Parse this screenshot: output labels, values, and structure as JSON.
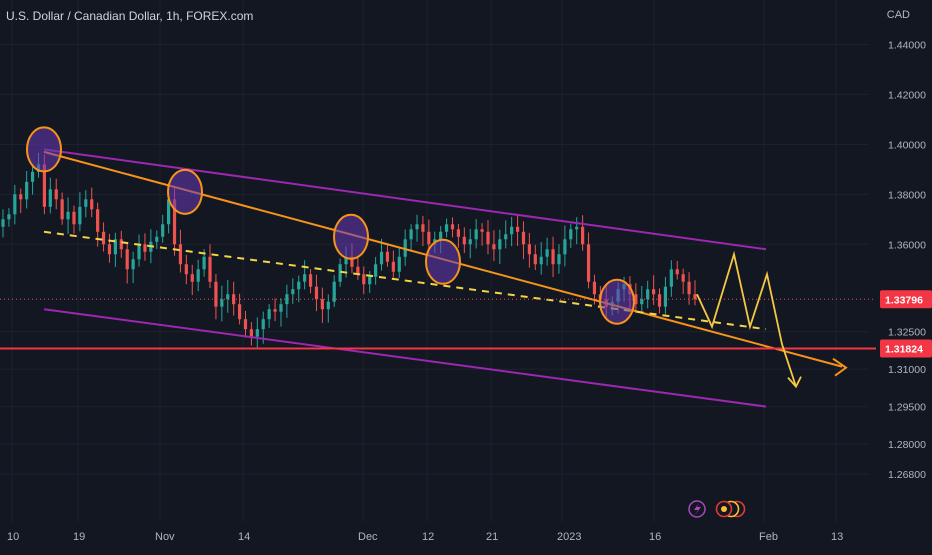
{
  "header": {
    "title": "U.S. Dollar / Canadian Dollar, 1h, FOREX.com",
    "currency": "CAD"
  },
  "colors": {
    "background": "#131722",
    "grid": "#1e222d",
    "candle_up": "#26a69a",
    "candle_down": "#ef5350",
    "channel": "#9c27b0",
    "trendline": "#f7931a",
    "dashed": "#f5d547",
    "projection": "#f5c842",
    "support": "#f23645",
    "current_price_badge": "#f23645",
    "support_badge": "#f23645"
  },
  "icons": [
    "lightning-icon",
    "economic-events-icon"
  ],
  "chart_data": {
    "type": "candlestick",
    "title": "U.S. Dollar / Canadian Dollar, 1h, FOREX.com",
    "xlabel": "",
    "ylabel": "",
    "ylim": [
      1.26,
      1.445
    ],
    "x_ticks": [
      "10",
      "19",
      "Nov",
      "14",
      "Dec",
      "12",
      "21",
      "2023",
      "16",
      "Feb",
      "13"
    ],
    "y_ticks": [
      "1.44000",
      "1.42000",
      "1.40000",
      "1.38000",
      "1.36000",
      "1.33796",
      "1.32500",
      "1.31824",
      "1.31000",
      "1.29500",
      "1.28000",
      "1.26800"
    ],
    "current_price": "1.33796",
    "support_level": "1.31824",
    "series": [
      {
        "values": [
          1.37,
          1.372,
          1.38,
          1.378,
          1.385,
          1.389,
          1.392,
          1.375,
          1.382,
          1.378,
          1.37,
          1.373,
          1.368,
          1.375,
          1.378,
          1.374,
          1.365,
          1.36,
          1.356,
          1.362,
          1.358,
          1.35,
          1.354,
          1.36,
          1.357,
          1.361,
          1.363,
          1.368,
          1.378,
          1.36,
          1.352,
          1.348,
          1.345,
          1.35,
          1.355,
          1.345,
          1.335,
          1.338,
          1.34,
          1.336,
          1.33,
          1.326,
          1.323,
          1.326,
          1.33,
          1.334,
          1.333,
          1.336,
          1.34,
          1.342,
          1.345,
          1.348,
          1.343,
          1.338,
          1.334,
          1.337,
          1.345,
          1.352,
          1.355,
          1.351,
          1.348,
          1.344,
          1.347,
          1.352,
          1.357,
          1.353,
          1.349,
          1.355,
          1.362,
          1.366,
          1.368,
          1.365,
          1.36,
          1.362,
          1.365,
          1.368,
          1.366,
          1.363,
          1.36,
          1.362,
          1.366,
          1.365,
          1.36,
          1.358,
          1.362,
          1.364,
          1.367,
          1.365,
          1.36,
          1.356,
          1.352,
          1.355,
          1.358,
          1.352,
          1.356,
          1.362,
          1.366,
          1.367,
          1.36,
          1.345,
          1.34,
          1.338,
          1.335,
          1.337,
          1.342,
          1.344,
          1.34,
          1.336,
          1.338,
          1.342,
          1.34,
          1.335,
          1.343,
          1.35,
          1.348,
          1.345,
          1.34,
          1.338
        ]
      }
    ],
    "annotations": [
      {
        "type": "channel-upper",
        "points": [
          [
            "Oct 13",
            1.398
          ],
          [
            "Feb 3",
            1.358
          ]
        ]
      },
      {
        "type": "channel-lower",
        "points": [
          [
            "Oct 13",
            1.334
          ],
          [
            "Feb 3",
            1.295
          ]
        ]
      },
      {
        "type": "trendline",
        "points": [
          [
            "Oct 13",
            1.397
          ],
          [
            "Feb 13",
            1.311
          ]
        ]
      },
      {
        "type": "dashed-line",
        "points": [
          [
            "Oct 13",
            1.365
          ],
          [
            "Feb 3",
            1.326
          ]
        ]
      },
      {
        "type": "horizontal-line",
        "value": 1.31824
      },
      {
        "type": "projection",
        "points": [
          [
            1.34
          ],
          [
            1.327
          ],
          [
            1.356
          ],
          [
            1.327
          ],
          [
            1.348
          ],
          [
            1.32
          ],
          [
            1.303
          ]
        ]
      }
    ]
  }
}
